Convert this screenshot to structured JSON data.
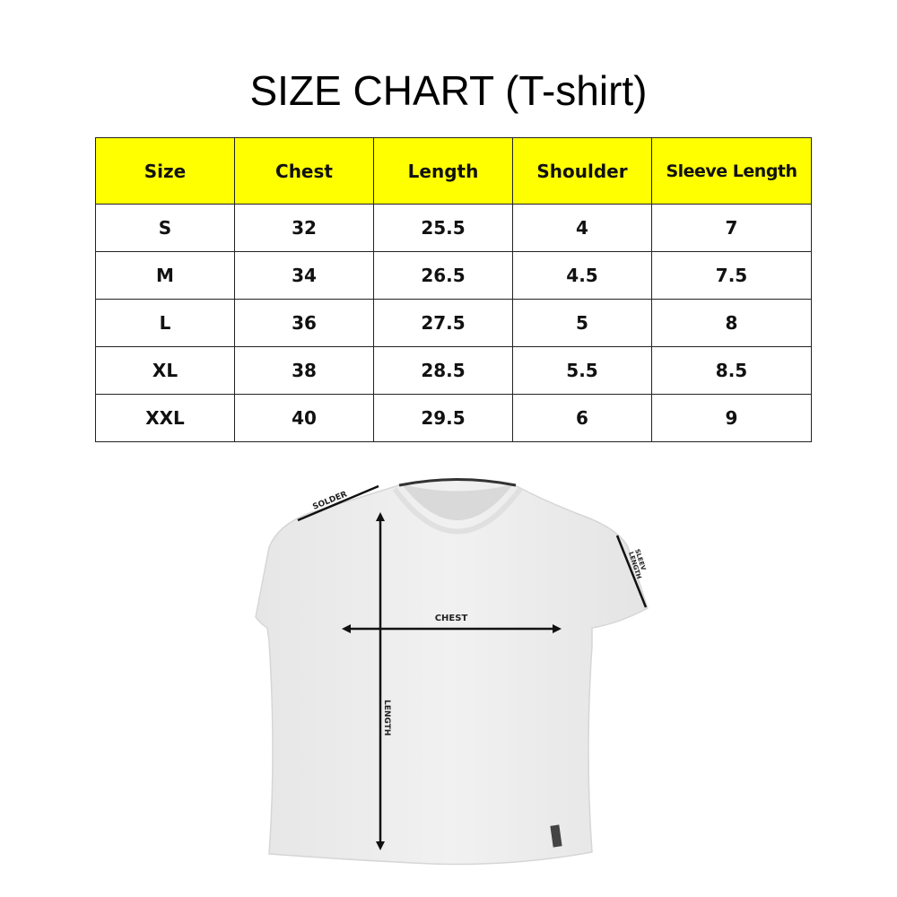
{
  "title": "SIZE CHART (T-shirt)",
  "table": {
    "headers": [
      "Size",
      "Chest",
      "Length",
      "Shoulder",
      "Sleeve Length"
    ],
    "rows": [
      [
        "S",
        "32",
        "25.5",
        "4",
        "7"
      ],
      [
        "M",
        "34",
        "26.5",
        "4.5",
        "7.5"
      ],
      [
        "L",
        "36",
        "27.5",
        "5",
        "8"
      ],
      [
        "XL",
        "38",
        "28.5",
        "5.5",
        "8.5"
      ],
      [
        "XXL",
        "40",
        "29.5",
        "6",
        "9"
      ]
    ],
    "header_color": "#FFFF00"
  },
  "diagram": {
    "labels": {
      "shoulder": "SOLDER",
      "sleeve_line1": "SLEEV",
      "sleeve_line2": "LENGTH",
      "chest": "CHEST",
      "length": "LENGTH"
    }
  }
}
